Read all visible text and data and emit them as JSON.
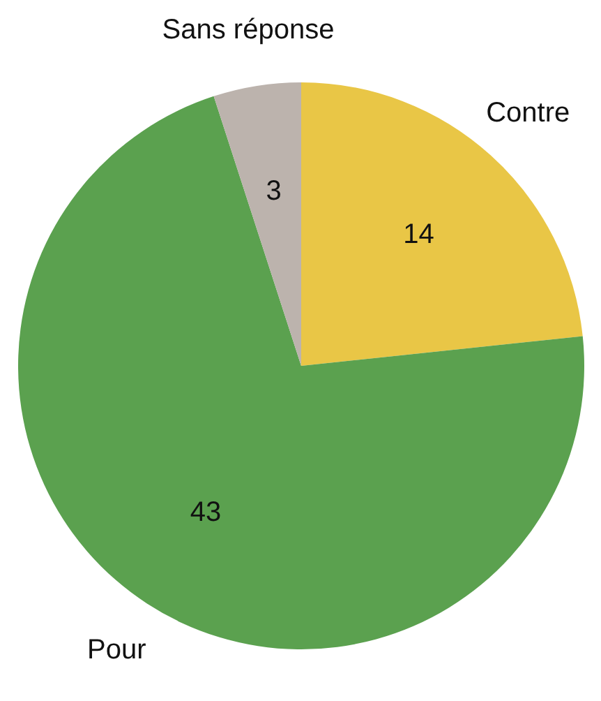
{
  "chart_data": {
    "type": "pie",
    "categories": [
      "Contre",
      "Pour",
      "Sans réponse"
    ],
    "values": [
      14,
      43,
      3
    ],
    "colors": [
      "#e9c646",
      "#5ba14f",
      "#bcb3ad"
    ],
    "data_labels": true,
    "legend": false
  }
}
